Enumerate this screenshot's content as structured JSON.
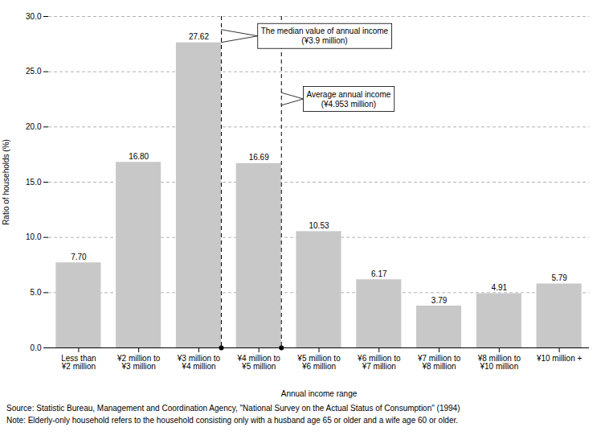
{
  "chart_data": {
    "type": "bar",
    "categories": [
      "Less than\n¥2 million",
      "¥2 million to\n¥3 million",
      "¥3 million to\n¥4 million",
      "¥4 million to\n¥5 million",
      "¥5 million to\n¥6 million",
      "¥6 million to\n¥7 million",
      "¥7 million to\n¥8 million",
      "¥8 million to\n¥10 million",
      "¥10 million +"
    ],
    "values": [
      7.7,
      16.8,
      27.62,
      16.69,
      10.53,
      6.17,
      3.79,
      4.91,
      5.79
    ],
    "value_labels": [
      "7.70",
      "16.80",
      "27.62",
      "16.69",
      "10.53",
      "6.17",
      "3.79",
      "4.91",
      "5.79"
    ],
    "data_labels": true,
    "color": "#c8c8c8",
    "ylim": [
      0,
      30.0
    ],
    "yticks": [
      {
        "value": 0,
        "label": "0.0"
      },
      {
        "value": 5,
        "label": "5.0"
      },
      {
        "value": 10,
        "label": "10.0"
      },
      {
        "value": 15,
        "label": "15.0"
      },
      {
        "value": 20,
        "label": "20.0"
      },
      {
        "value": 25,
        "label": "25.0"
      },
      {
        "value": 30,
        "label": "30.0"
      }
    ],
    "grid": true,
    "ylabel": "Ratio of households (%)",
    "xlabel": "Annual income range",
    "annotations": [
      "The median value of annual income\n(¥3.9 million)",
      "Average annual income\n(¥4.953 million)"
    ],
    "source": "Source:  Statistic Bureau, Management and Coordination Agency, \"National Survey on the Actual Status of Consumption\" (1994)",
    "note": "Note:  Elderly-only household refers to the household consisting only with a husband age 65 or older and a wife age 60 or older."
  }
}
